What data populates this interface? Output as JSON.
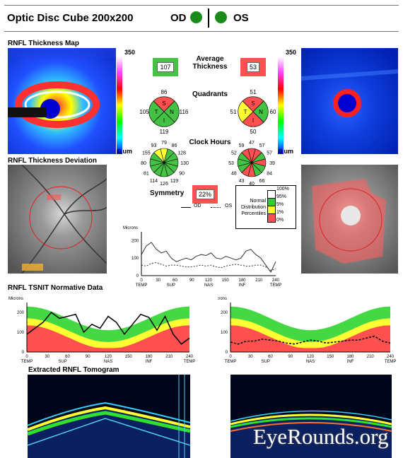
{
  "header": {
    "title": "Optic Disc Cube 200x200",
    "od_label": "OD",
    "os_label": "OS",
    "eye_color": "#1a8c1a"
  },
  "sections": {
    "thickness_map": "RNFL Thickness Map",
    "deviation": "RNFL Thickness Deviation",
    "tsnit": "RNFL TSNIT Normative Data",
    "tomogram": "Extracted RNFL Tomogram"
  },
  "colorbar": {
    "left_max": "350",
    "left_min": "0 um",
    "right_max": "350",
    "right_min": "0 um"
  },
  "average_thickness": {
    "label": "Average Thickness",
    "od": "107",
    "os": "53"
  },
  "quadrants": {
    "label": "Quadrants",
    "od": {
      "S": "86",
      "N": "116",
      "I": "119",
      "T": "105",
      "S_letter": "S",
      "N_letter": "N",
      "I_letter": "I",
      "T_letter": "T"
    },
    "os": {
      "S": "51",
      "N": "60",
      "I": "50",
      "T": "51",
      "S_letter": "S",
      "N_letter": "N",
      "I_letter": "I",
      "T_letter": "T"
    }
  },
  "clock_hours": {
    "label": "Clock Hours",
    "od": [
      "79",
      "86",
      "128",
      "130",
      "90",
      "119",
      "126",
      "114",
      "81",
      "80",
      "155",
      "93"
    ],
    "os": [
      "47",
      "57",
      "57",
      "39",
      "84",
      "66",
      "40",
      "43",
      "48",
      "53",
      "52",
      "59"
    ]
  },
  "symmetry": {
    "label": "Symmetry",
    "value": "22%"
  },
  "legend": {
    "title_lines": [
      "Normal",
      "Distribution",
      "Percentiles"
    ],
    "levels": [
      "100%",
      "95%",
      "5%",
      "1%",
      "0%"
    ],
    "colors": [
      "#ffffff",
      "#33cc33",
      "#ffff33",
      "#ff5050"
    ],
    "od_label": "OD",
    "os_label": "OS"
  },
  "chart_data": [
    {
      "type": "line",
      "ylabel": "Microns",
      "ylim": [
        0,
        250
      ],
      "yticks": [
        "200",
        "100",
        "0"
      ],
      "xticks": [
        "0",
        "30",
        "60",
        "90",
        "120",
        "150",
        "180",
        "210",
        "240"
      ],
      "xcats": [
        "TEMP",
        "SUP",
        "NAS",
        "INF",
        "TEMP"
      ],
      "series": [
        {
          "name": "OD",
          "values": [
            120,
            170,
            190,
            150,
            130,
            140,
            100,
            80,
            90,
            100,
            90,
            110,
            120,
            115,
            130,
            100,
            95,
            110,
            100,
            90,
            100,
            140,
            150,
            120,
            100,
            60,
            20,
            80
          ]
        },
        {
          "name": "OS",
          "values": [
            60,
            55,
            70,
            75,
            65,
            55,
            60,
            60,
            55,
            50,
            50,
            55,
            60,
            55,
            60,
            50,
            45,
            55,
            60,
            65,
            60,
            55,
            55,
            60,
            60,
            50,
            30,
            40
          ]
        }
      ]
    },
    {
      "type": "area",
      "ylabel": "Microns",
      "ylim": [
        0,
        250
      ],
      "yticks": [
        "200",
        "100",
        "0"
      ],
      "xticks": [
        "0",
        "30",
        "60",
        "90",
        "120",
        "150",
        "180",
        "210",
        "240"
      ],
      "xcats": [
        "TEMP",
        "SUP",
        "NAS",
        "INF",
        "TEMP"
      ],
      "series": [
        {
          "name": "OD",
          "values": [
            90,
            120,
            150,
            200,
            170,
            180,
            190,
            100,
            140,
            120,
            180,
            150,
            90,
            140,
            190,
            175,
            110,
            180,
            90,
            40,
            70
          ]
        }
      ]
    },
    {
      "type": "area",
      "ylabel": "Microns",
      "ylim": [
        0,
        250
      ],
      "yticks": [
        "200",
        "100",
        "0"
      ],
      "xticks": [
        "0",
        "30",
        "60",
        "90",
        "120",
        "150",
        "180",
        "210",
        "240"
      ],
      "xcats": [
        "TEMP",
        "SUP",
        "NAS",
        "INF",
        "TEMP"
      ],
      "series": [
        {
          "name": "OS",
          "values": [
            50,
            40,
            55,
            55,
            65,
            60,
            55,
            45,
            40,
            50,
            60,
            55,
            45,
            50,
            55,
            60,
            60,
            70,
            80,
            55,
            45
          ]
        }
      ]
    }
  ],
  "watermark": "EyeRounds.org"
}
